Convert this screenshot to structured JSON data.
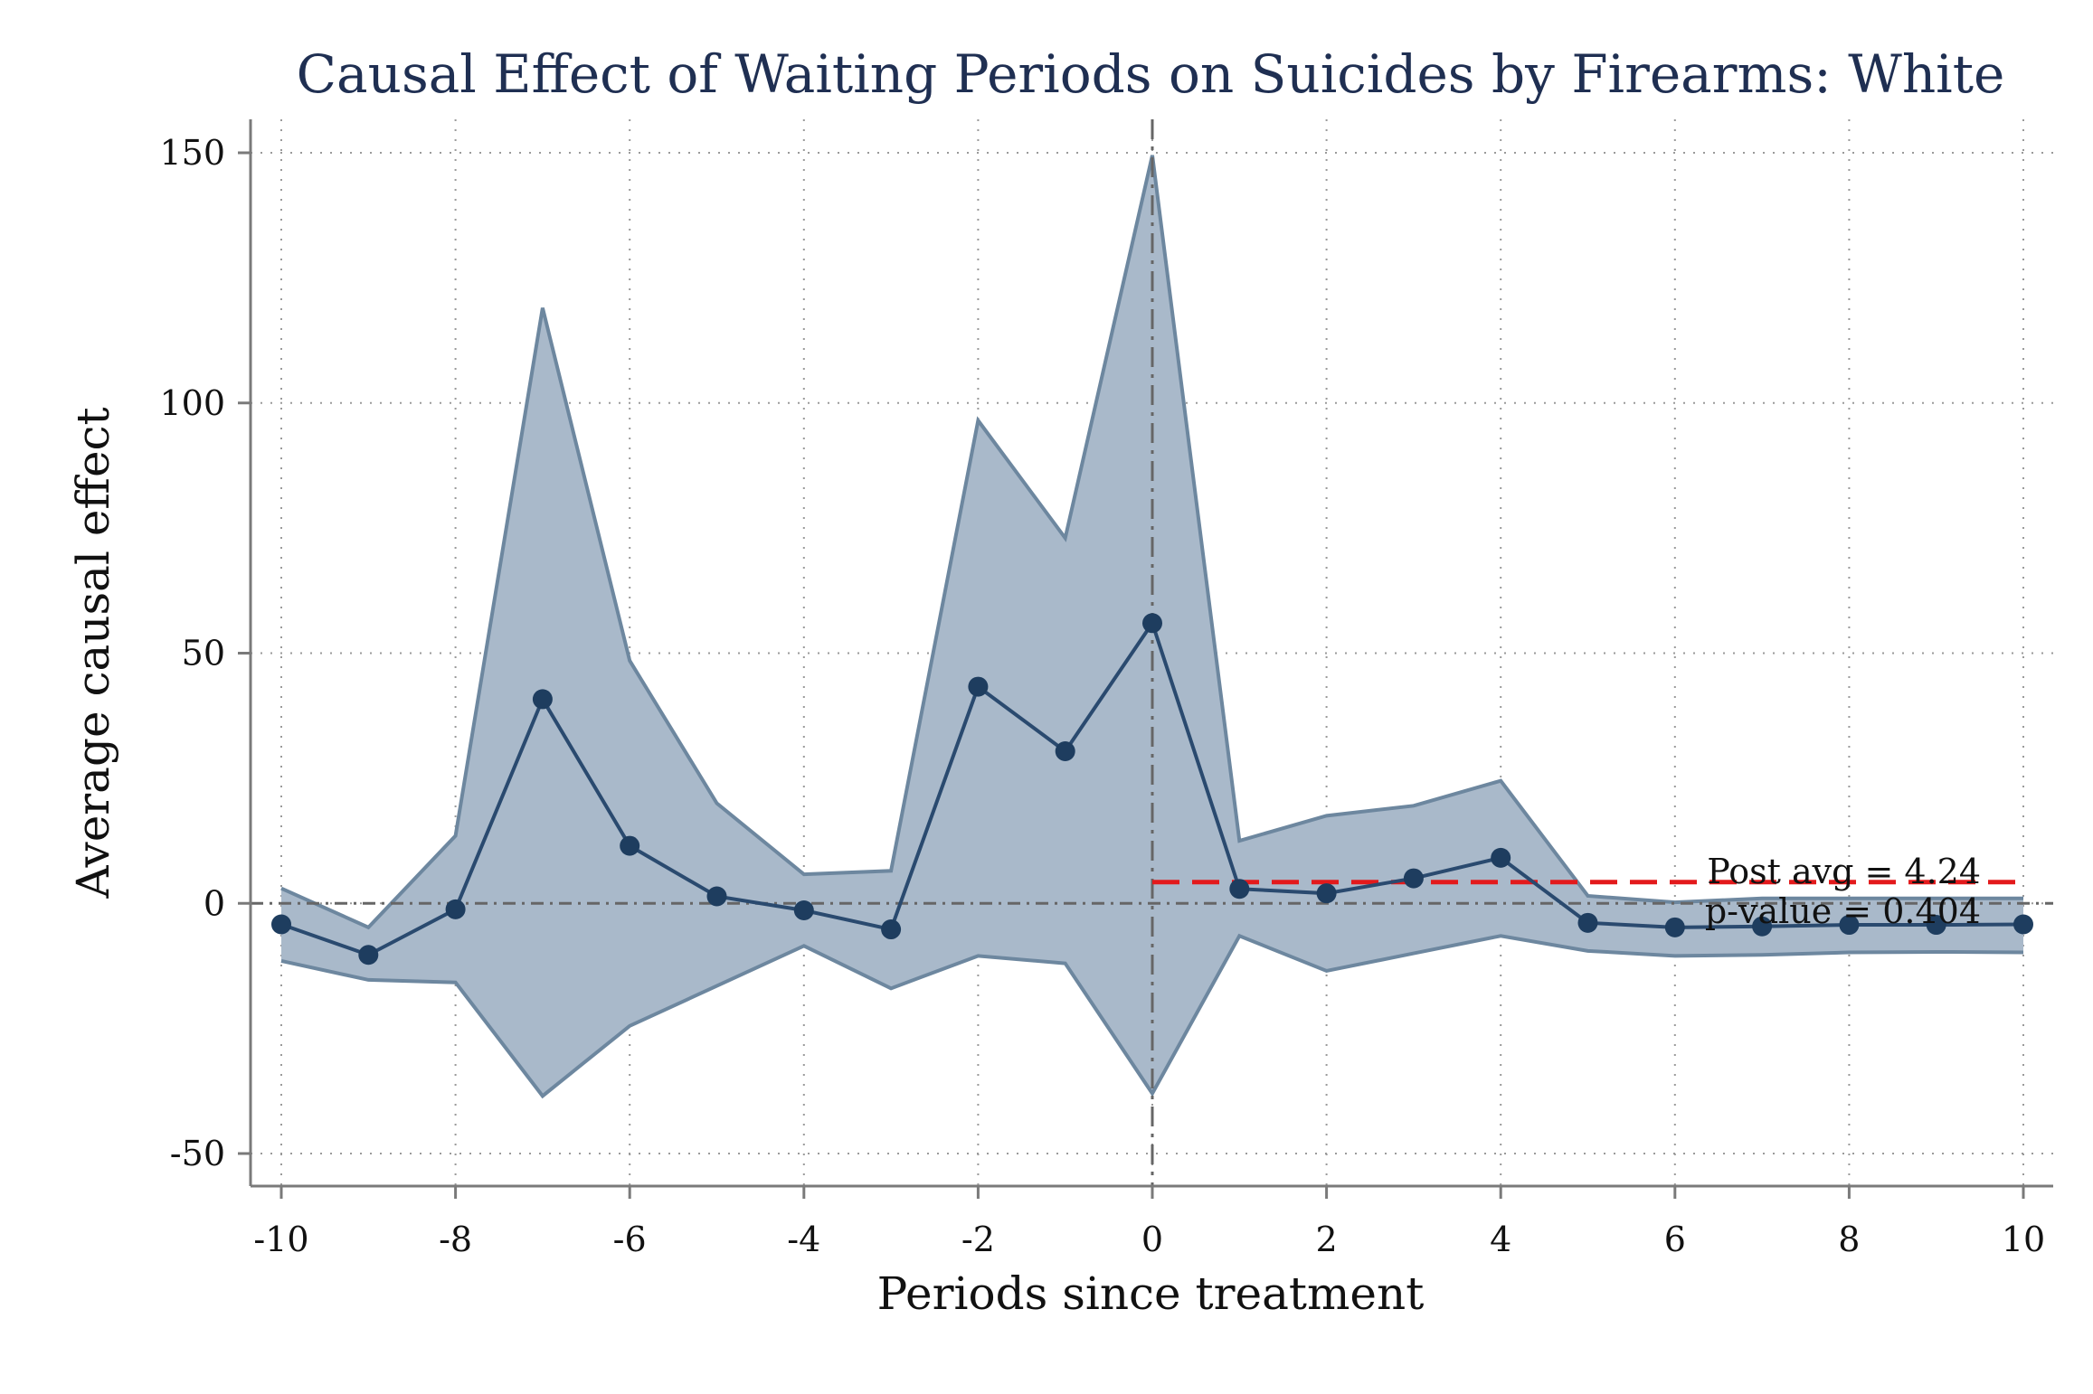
{
  "chart_data": {
    "type": "line",
    "title": "Causal Effect of Waiting Periods on Suicides by Firearms: White",
    "xlabel": "Periods since treatment",
    "ylabel": "Average causal effect",
    "xlim": [
      -10,
      10
    ],
    "ylim": [
      -50,
      150
    ],
    "xticks": [
      -10,
      -8,
      -6,
      -4,
      -2,
      0,
      2,
      4,
      6,
      8,
      10
    ],
    "yticks": [
      -50,
      0,
      50,
      100,
      150
    ],
    "grid": true,
    "x": [
      -10,
      -9,
      -8,
      -7,
      -6,
      -5,
      -4,
      -3,
      -2,
      -1,
      0,
      1,
      2,
      3,
      4,
      5,
      6,
      7,
      8,
      9,
      10
    ],
    "series": [
      {
        "values": [
          -4.2,
          -10.3,
          -1.2,
          40.8,
          11.5,
          1.4,
          -1.4,
          -5.2,
          43.3,
          30.4,
          56.0,
          2.9,
          2.0,
          5.0,
          9.1,
          -3.9,
          -4.8,
          -4.6,
          -4.3,
          -4.3,
          -4.2
        ],
        "ci_upper": [
          3.0,
          -4.8,
          13.5,
          119.0,
          48.5,
          20.0,
          5.8,
          6.5,
          96.5,
          73.0,
          149.5,
          12.5,
          17.5,
          19.5,
          24.5,
          1.5,
          0.2,
          1.0,
          1.0,
          1.0,
          1.0
        ],
        "ci_lower": [
          -11.5,
          -15.3,
          -15.8,
          -38.5,
          -24.5,
          -16.5,
          -8.5,
          -17.0,
          -10.5,
          -12.0,
          -38.0,
          -6.5,
          -13.5,
          -10.0,
          -6.5,
          -9.5,
          -10.5,
          -10.3,
          -9.8,
          -9.7,
          -9.8
        ]
      }
    ],
    "reference_lines": {
      "y_zero": 0,
      "x_treatment": 0,
      "post_avg": 4.24
    },
    "annotations": [
      "Post avg = 4.24",
      "p-value = 0.404"
    ],
    "colors": {
      "band_fill": "#a9b9ca",
      "band_edge": "#6d879f",
      "line": "#2a4a6f",
      "marker": "#1e3d5f",
      "post_avg_line": "#e31a1c",
      "title": "#1f2f52",
      "grid": "#9a9a9a",
      "axis": "#7a7a7a"
    }
  }
}
